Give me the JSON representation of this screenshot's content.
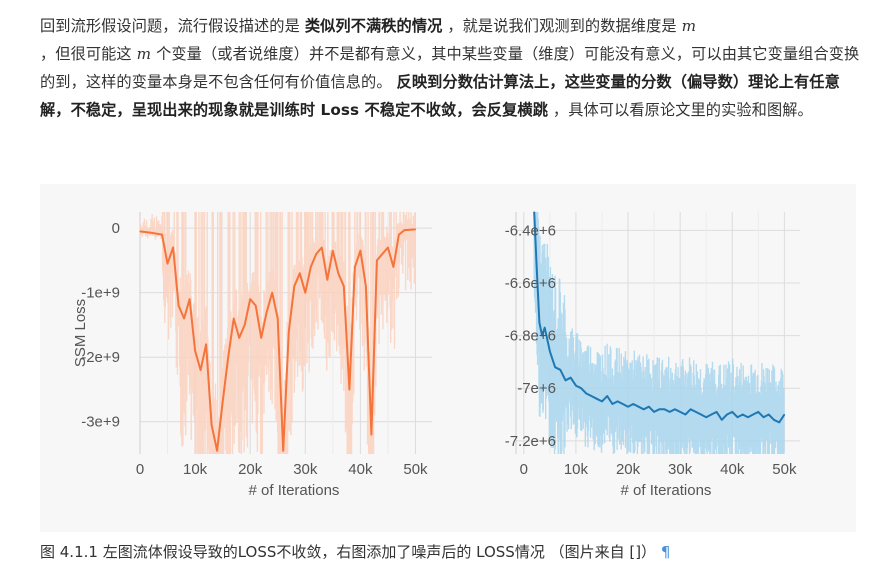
{
  "paragraph": {
    "t1": "回到流形假设问题，流行假设描述的是 ",
    "b1": "类似列不满秩的情况",
    "t2": " ，就是说我们观测到的数据维度是 ",
    "m1": "m",
    "t3": "，但很可能这 ",
    "m2": "m",
    "t4": " 个变量（或者说维度）并不是都有意义，其中某些变量（维度）可能没有意义，可以由其它变量组合变换的到，这样的变量本身是不包含任何有价值信息的。 ",
    "b2": "反映到分数估计算法上，这些变量的分数（偏导数）理论上有任意解，不稳定，呈现出来的现象就是训练时 Loss 不稳定不收敛，会反复横跳",
    "t5": " ，具体可以看原论文里的实验和图解。"
  },
  "caption": {
    "text": "图 4.1.1 左图流体假设导致的LOSS不收敛，右图添加了噪声后的 LOSS情况 （图片来自 []）",
    "pilcrow": "¶"
  },
  "colors": {
    "left_series": "#f4743b",
    "left_band": "#fbd2bf",
    "right_series": "#1f78b4",
    "right_band": "#a9d6ee",
    "grid": "#dcdcdc",
    "axis_text": "#555555"
  },
  "chart_data": [
    {
      "type": "line",
      "title": "",
      "xlabel": "# of Iterations",
      "ylabel": "SSM Loss",
      "xlim": [
        0,
        53000
      ],
      "ylim": [
        -3500000000.0,
        250000000.0
      ],
      "x_ticks": [
        0,
        10000,
        20000,
        30000,
        40000,
        50000
      ],
      "x_tick_labels": [
        "0",
        "10k",
        "20k",
        "30k",
        "40k",
        "50k"
      ],
      "y_ticks": [
        0,
        -1000000000.0,
        -2000000000.0,
        -3000000000.0
      ],
      "y_tick_labels": [
        "0",
        "-1e+9",
        "-2e+9",
        "-3e+9"
      ],
      "grid": true,
      "series": [
        {
          "x": [
            0,
            2000,
            4000,
            5000,
            6000,
            7000,
            8000,
            9000,
            10000,
            11000,
            12000,
            13000,
            14000,
            15000,
            16000,
            17000,
            18000,
            19000,
            20000,
            21000,
            22000,
            23000,
            24000,
            25000,
            26000,
            27000,
            28000,
            29000,
            30000,
            31000,
            32000,
            33000,
            34000,
            35000,
            36000,
            37000,
            38000,
            39000,
            40000,
            41000,
            42000,
            43000,
            44000,
            45000,
            46000,
            47000,
            48000,
            50000
          ],
          "y": [
            -50000000.0,
            -70000000.0,
            -100000000.0,
            -550000000.0,
            -300000000.0,
            -1200000000.0,
            -1400000000.0,
            -1100000000.0,
            -1900000000.0,
            -2200000000.0,
            -1800000000.0,
            -3050000000.0,
            -3450000000.0,
            -2700000000.0,
            -2000000000.0,
            -1400000000.0,
            -1700000000.0,
            -1500000000.0,
            -1100000000.0,
            -1200000000.0,
            -1700000000.0,
            -1300000000.0,
            -1000000000.0,
            -1400000000.0,
            -3450000000.0,
            -1600000000.0,
            -900000000.0,
            -700000000.0,
            -1000000000.0,
            -600000000.0,
            -400000000.0,
            -300000000.0,
            -800000000.0,
            -350000000.0,
            -700000000.0,
            -900000000.0,
            -2500000000.0,
            -600000000.0,
            -350000000.0,
            -900000000.0,
            -3200000000.0,
            -500000000.0,
            -400000000.0,
            -300000000.0,
            -600000000.0,
            -100000000.0,
            -30000000.0,
            -20000000.0
          ]
        }
      ]
    },
    {
      "type": "line",
      "title": "",
      "xlabel": "# of Iterations",
      "ylabel": "",
      "xlim": [
        -1500,
        53000
      ],
      "ylim": [
        -7250000.0,
        -6330000.0
      ],
      "x_ticks": [
        0,
        10000,
        20000,
        30000,
        40000,
        50000
      ],
      "x_tick_labels": [
        "0",
        "10k",
        "20k",
        "30k",
        "40k",
        "50k"
      ],
      "y_ticks": [
        -6400000.0,
        -6600000.0,
        -6800000.0,
        -7000000.0,
        -7200000.0
      ],
      "y_tick_labels": [
        "-6.4e+6",
        "-6.6e+6",
        "-6.8e+6",
        "-7e+6",
        "-7.2e+6"
      ],
      "grid": true,
      "series": [
        {
          "x": [
            2000,
            2500,
            3000,
            3500,
            4000,
            5000,
            6000,
            7000,
            8000,
            9000,
            10000,
            11000,
            12000,
            13000,
            14000,
            15000,
            16000,
            17000,
            18000,
            19000,
            20000,
            21000,
            22000,
            23000,
            24000,
            25000,
            26000,
            27000,
            28000,
            29000,
            30000,
            31000,
            32000,
            33000,
            34000,
            35000,
            36000,
            37000,
            38000,
            39000,
            40000,
            41000,
            42000,
            43000,
            44000,
            45000,
            46000,
            47000,
            48000,
            49000,
            50000
          ],
          "y": [
            -6300000.0,
            -6550000.0,
            -6750000.0,
            -6800000.0,
            -6770000.0,
            -6860000.0,
            -6920000.0,
            -6930000.0,
            -6970000.0,
            -6960000.0,
            -6990000.0,
            -7000000.0,
            -7020000.0,
            -7030000.0,
            -7040000.0,
            -7050000.0,
            -7030000.0,
            -7060000.0,
            -7050000.0,
            -7060000.0,
            -7070000.0,
            -7060000.0,
            -7070000.0,
            -7080000.0,
            -7070000.0,
            -7090000.0,
            -7080000.0,
            -7080000.0,
            -7090000.0,
            -7080000.0,
            -7090000.0,
            -7100000.0,
            -7080000.0,
            -7090000.0,
            -7100000.0,
            -7110000.0,
            -7100000.0,
            -7090000.0,
            -7120000.0,
            -7100000.0,
            -7090000.0,
            -7110000.0,
            -7100000.0,
            -7110000.0,
            -7100000.0,
            -7090000.0,
            -7110000.0,
            -7100000.0,
            -7120000.0,
            -7130000.0,
            -7100000.0
          ]
        }
      ]
    }
  ]
}
